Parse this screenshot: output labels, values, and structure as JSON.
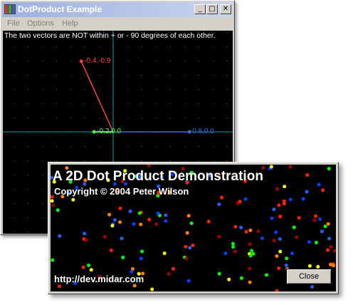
{
  "window": {
    "title": "DotProduct Example",
    "buttons": {
      "minimize": "_",
      "maximize": "□",
      "close": "✕"
    },
    "title_gradient": [
      "#9db0e0",
      "#c9d4ee"
    ]
  },
  "menu": {
    "items": [
      "File",
      "Options",
      "Help"
    ]
  },
  "canvas": {
    "message": "The two vectors are NOT within + or - 90 degrees of each other.",
    "vectors": [
      {
        "name": "vector-a",
        "x": -0.4,
        "y": -0.9,
        "label": "-0.4,-0.9",
        "color": "#ff4040"
      },
      {
        "name": "vector-b",
        "x": 0.8,
        "y": 0.0,
        "label": "0.8,0.0",
        "color": "#4060ff"
      },
      {
        "name": "projection",
        "x": -0.2,
        "y": 0.0,
        "label": "-0.2,0.0",
        "color": "#40ff40"
      }
    ],
    "axis_color": "#00a0a0",
    "grid_color": "#606060"
  },
  "splash": {
    "title": "A 2D Dot Product Demonstration",
    "copyright": "Copyright © 2004 Peter Wilson",
    "url": "http://dev.midar.com",
    "close_label": "Close",
    "dot_colors": [
      "#0040ff",
      "#ffff00",
      "#00ff00",
      "#ff2000",
      "#a00000",
      "#ff8000",
      "#2060ff"
    ]
  }
}
